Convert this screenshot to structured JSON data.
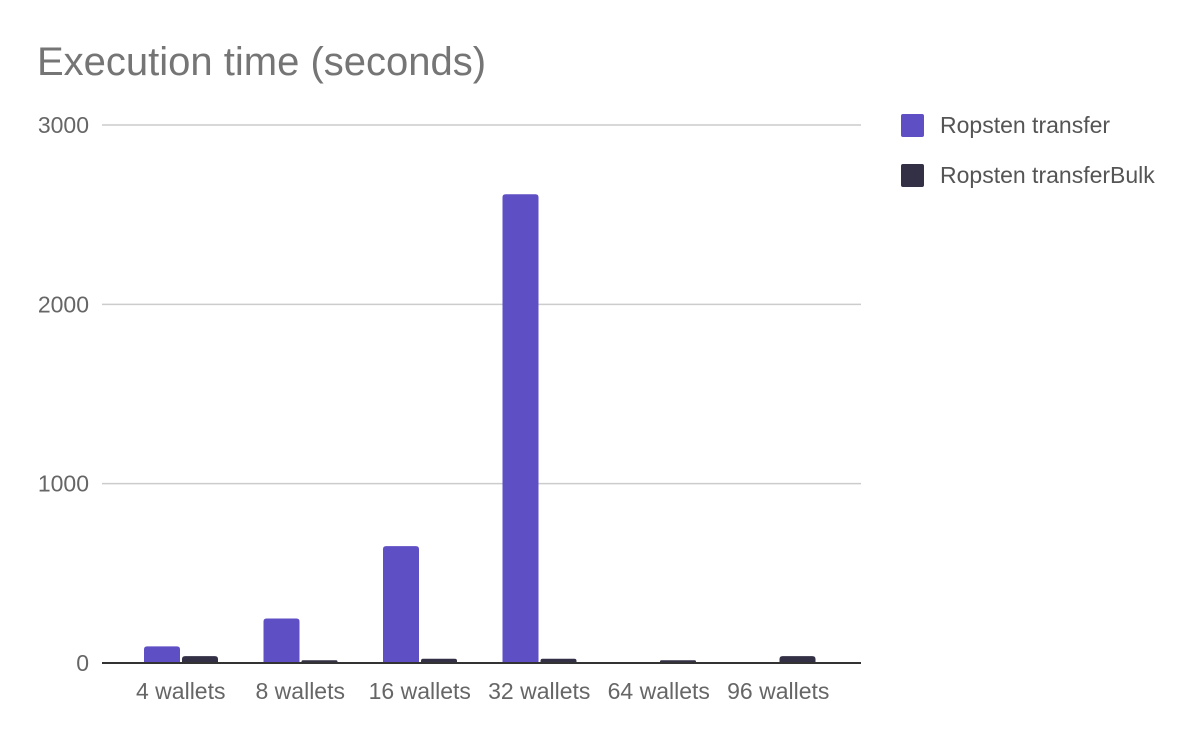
{
  "chart_data": {
    "type": "bar",
    "title": "Execution time (seconds)",
    "xlabel": "",
    "ylabel": "",
    "categories": [
      "4 wallets",
      "8 wallets",
      "16 wallets",
      "32 wallets",
      "64 wallets",
      "96 wallets"
    ],
    "series": [
      {
        "name": "Ropsten transfer",
        "color": "#5f4fc4",
        "values": [
          93,
          248,
          652,
          2614,
          0,
          0
        ]
      },
      {
        "name": "Ropsten transferBulk",
        "color": "#332f44",
        "values": [
          38,
          15,
          24,
          24,
          15,
          38
        ]
      }
    ],
    "ylim": [
      0,
      3000
    ],
    "yticks": [
      0,
      1000,
      2000,
      3000
    ],
    "grid": true,
    "legend_position": "right"
  }
}
